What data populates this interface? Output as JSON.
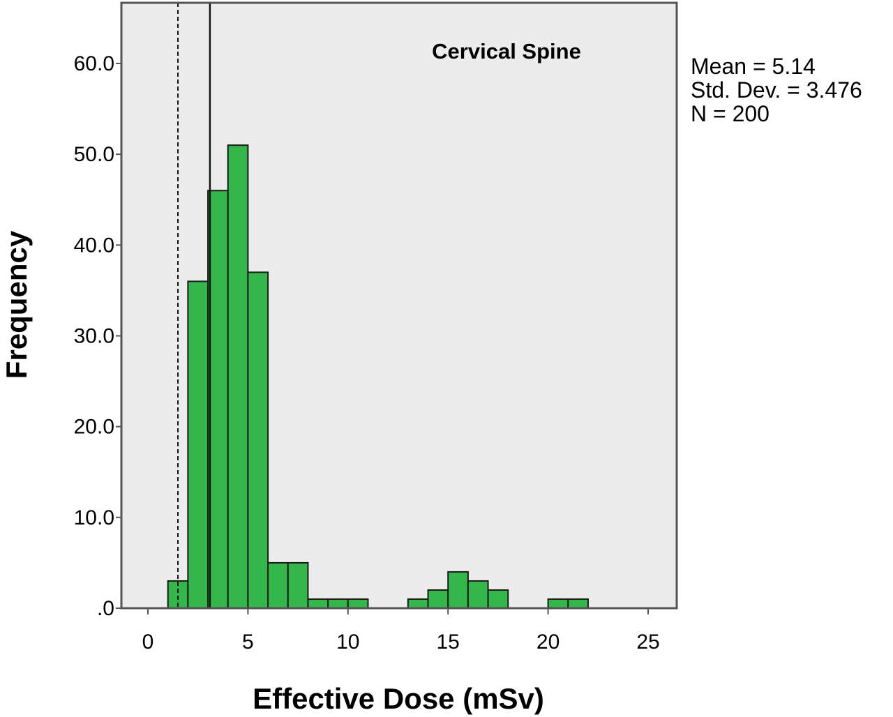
{
  "chart_data": {
    "type": "bar",
    "subtype": "histogram",
    "title": "Cervical Spine",
    "xlabel": "Effective Dose (mSv)",
    "ylabel": "Frequency",
    "xlim": [
      -1.4,
      26.5
    ],
    "ylim": [
      0,
      66
    ],
    "x_ticks": [
      0,
      5,
      10,
      15,
      20,
      25
    ],
    "x_tick_labels": [
      "0",
      "5",
      "10",
      "15",
      "20",
      "25"
    ],
    "y_ticks": [
      0,
      10,
      20,
      30,
      40,
      50,
      60
    ],
    "y_tick_labels": [
      ".0",
      "10.0",
      "20.0",
      "30.0",
      "40.0",
      "50.0",
      "60.0"
    ],
    "bin_width": 1.0,
    "bins": [
      {
        "start": 1,
        "end": 2,
        "count": 3
      },
      {
        "start": 2,
        "end": 3,
        "count": 36
      },
      {
        "start": 3,
        "end": 4,
        "count": 46
      },
      {
        "start": 4,
        "end": 5,
        "count": 51
      },
      {
        "start": 5,
        "end": 6,
        "count": 37
      },
      {
        "start": 6,
        "end": 7,
        "count": 5
      },
      {
        "start": 7,
        "end": 8,
        "count": 5
      },
      {
        "start": 8,
        "end": 9,
        "count": 1
      },
      {
        "start": 9,
        "end": 10,
        "count": 1
      },
      {
        "start": 10,
        "end": 11,
        "count": 1
      },
      {
        "start": 13,
        "end": 14,
        "count": 1
      },
      {
        "start": 14,
        "end": 15,
        "count": 2
      },
      {
        "start": 15,
        "end": 16,
        "count": 4
      },
      {
        "start": 16,
        "end": 17,
        "count": 3
      },
      {
        "start": 17,
        "end": 18,
        "count": 2
      },
      {
        "start": 20,
        "end": 21,
        "count": 1
      },
      {
        "start": 21,
        "end": 22,
        "count": 1
      }
    ],
    "reference_lines": [
      {
        "x": 1.5,
        "style": "dashed"
      },
      {
        "x": 3.1,
        "style": "solid"
      }
    ],
    "stats": {
      "mean": "Mean = 5.14",
      "std_dev": "Std. Dev. = 3.476",
      "n": "N = 200"
    },
    "grid": false,
    "colors": {
      "bar_fill": "#33b74a",
      "bar_stroke": "#1a1a1a",
      "plot_background": "#ececec",
      "frame": "#555555"
    }
  }
}
